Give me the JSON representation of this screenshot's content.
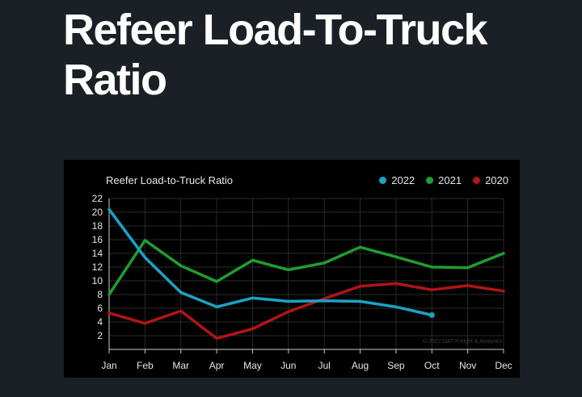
{
  "page": {
    "headline": "Refeer Load-To-Truck Ratio"
  },
  "watermark": "© 2022 DAT Freight & Analytics",
  "colors": {
    "background": "#1b2027",
    "panel": "#000000",
    "grid": "#2a2a2a",
    "axis": "#cccccc",
    "text": "#e6e6e6"
  },
  "chart_data": {
    "type": "line",
    "title": "Reefer Load-to-Truck Ratio",
    "xlabel": "",
    "ylabel": "",
    "x": [
      "Jan",
      "Feb",
      "Mar",
      "Apr",
      "May",
      "Jun",
      "Jul",
      "Aug",
      "Sep",
      "Oct",
      "Nov",
      "Dec"
    ],
    "ylim": [
      0,
      22
    ],
    "yticks": [
      2,
      4,
      6,
      8,
      10,
      12,
      14,
      16,
      18,
      20,
      22
    ],
    "grid": true,
    "legend_position": "top-right",
    "series": [
      {
        "name": "2022",
        "color": "#1ba3c6",
        "values": [
          20.4,
          13.4,
          8.3,
          6.2,
          7.5,
          7.0,
          7.1,
          7.0,
          6.2,
          5.0,
          null,
          null
        ]
      },
      {
        "name": "2021",
        "color": "#1f9e2f",
        "values": [
          8.0,
          15.9,
          12.2,
          9.9,
          13.0,
          11.6,
          12.6,
          14.9,
          13.5,
          12.0,
          11.9,
          14.0
        ]
      },
      {
        "name": "2020",
        "color": "#b01515",
        "values": [
          5.3,
          3.8,
          5.6,
          1.6,
          3.0,
          5.5,
          7.4,
          9.2,
          9.6,
          8.7,
          9.3,
          8.5
        ]
      }
    ]
  }
}
